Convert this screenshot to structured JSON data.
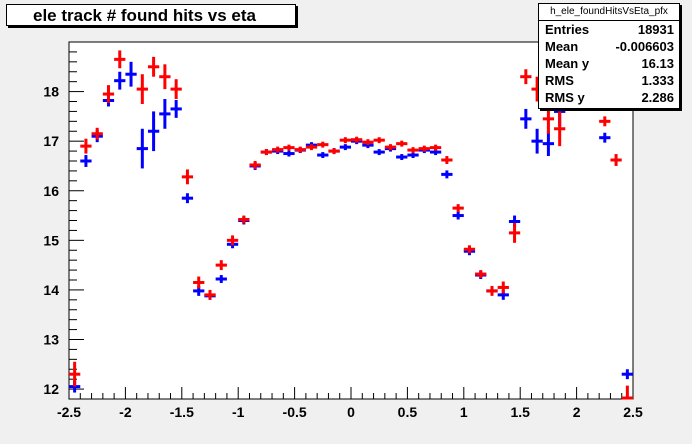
{
  "histogram_name": "h_ele_foundHitsVsEta_pfx",
  "stats": [
    {
      "label": "Entries",
      "value": "18931"
    },
    {
      "label": "Mean",
      "value": "-0.006603"
    },
    {
      "label": "Mean y",
      "value": "16.13"
    },
    {
      "label": "RMS",
      "value": "1.333"
    },
    {
      "label": "RMS y",
      "value": "2.286"
    }
  ],
  "colors": {
    "background": "#f0f0f0",
    "frame": "#ffffff",
    "series_blue": "#0000ff",
    "series_red": "#ff0000"
  },
  "chart_data": {
    "type": "scatter",
    "title": "ele track # found hits vs eta",
    "xlabel": "",
    "ylabel": "",
    "xlim": [
      -2.5,
      2.5
    ],
    "ylim": [
      11.8,
      19.0
    ],
    "x_ticks": [
      "-2.5",
      "-2",
      "-1.5",
      "-1",
      "-0.5",
      "0",
      "0.5",
      "1",
      "1.5",
      "2",
      "2.5"
    ],
    "y_ticks": [
      "12",
      "13",
      "14",
      "15",
      "16",
      "17",
      "18"
    ],
    "grid": false,
    "series": [
      {
        "color": "#0000ff",
        "points": [
          [
            -2.45,
            12.05,
            0.12
          ],
          [
            -2.35,
            16.6,
            0.12
          ],
          [
            -2.25,
            17.1,
            0.12
          ],
          [
            -2.15,
            17.82,
            0.12
          ],
          [
            -2.05,
            18.22,
            0.18
          ],
          [
            -1.95,
            18.35,
            0.25
          ],
          [
            -1.85,
            16.85,
            0.4
          ],
          [
            -1.75,
            17.2,
            0.4
          ],
          [
            -1.65,
            17.55,
            0.3
          ],
          [
            -1.55,
            17.65,
            0.18
          ],
          [
            -1.45,
            15.85,
            0.1
          ],
          [
            -1.35,
            13.98,
            0.1
          ],
          [
            -1.25,
            13.88,
            0.08
          ],
          [
            -1.15,
            14.22,
            0.08
          ],
          [
            -1.05,
            14.92,
            0.08
          ],
          [
            -0.95,
            15.4,
            0.08
          ],
          [
            -0.85,
            16.5,
            0.08
          ],
          [
            -0.75,
            16.78,
            0.06
          ],
          [
            -0.65,
            16.8,
            0.06
          ],
          [
            -0.55,
            16.75,
            0.06
          ],
          [
            -0.45,
            16.82,
            0.06
          ],
          [
            -0.35,
            16.92,
            0.06
          ],
          [
            -0.25,
            16.72,
            0.06
          ],
          [
            -0.15,
            16.8,
            0.06
          ],
          [
            -0.05,
            16.88,
            0.06
          ],
          [
            0.05,
            17.0,
            0.06
          ],
          [
            0.15,
            16.92,
            0.06
          ],
          [
            0.25,
            16.78,
            0.06
          ],
          [
            0.35,
            16.85,
            0.06
          ],
          [
            0.45,
            16.68,
            0.06
          ],
          [
            0.55,
            16.72,
            0.06
          ],
          [
            0.65,
            16.82,
            0.06
          ],
          [
            0.75,
            16.78,
            0.06
          ],
          [
            0.85,
            16.33,
            0.08
          ],
          [
            0.95,
            15.5,
            0.08
          ],
          [
            1.05,
            14.78,
            0.08
          ],
          [
            1.15,
            14.3,
            0.08
          ],
          [
            1.25,
            13.98,
            0.08
          ],
          [
            1.35,
            13.9,
            0.1
          ],
          [
            1.45,
            15.38,
            0.12
          ],
          [
            1.55,
            17.45,
            0.2
          ],
          [
            1.65,
            17.0,
            0.25
          ],
          [
            1.75,
            16.95,
            0.25
          ],
          [
            1.85,
            17.6,
            0.3
          ],
          [
            2.25,
            17.07,
            0.1
          ],
          [
            2.45,
            12.3,
            0.1
          ]
        ]
      },
      {
        "color": "#ff0000",
        "points": [
          [
            -2.45,
            12.3,
            0.25
          ],
          [
            -2.35,
            16.9,
            0.15
          ],
          [
            -2.25,
            17.15,
            0.12
          ],
          [
            -2.15,
            17.95,
            0.18
          ],
          [
            -2.05,
            18.65,
            0.18
          ],
          [
            -1.85,
            18.05,
            0.3
          ],
          [
            -1.75,
            18.5,
            0.2
          ],
          [
            -1.65,
            18.3,
            0.25
          ],
          [
            -1.55,
            18.05,
            0.2
          ],
          [
            -1.45,
            16.28,
            0.15
          ],
          [
            -1.35,
            14.15,
            0.12
          ],
          [
            -1.25,
            13.9,
            0.1
          ],
          [
            -1.15,
            14.5,
            0.1
          ],
          [
            -1.05,
            15.0,
            0.1
          ],
          [
            -0.95,
            15.42,
            0.08
          ],
          [
            -0.85,
            16.52,
            0.08
          ],
          [
            -0.75,
            16.78,
            0.06
          ],
          [
            -0.65,
            16.83,
            0.06
          ],
          [
            -0.55,
            16.87,
            0.06
          ],
          [
            -0.45,
            16.83,
            0.06
          ],
          [
            -0.35,
            16.88,
            0.06
          ],
          [
            -0.25,
            16.93,
            0.06
          ],
          [
            -0.15,
            16.8,
            0.06
          ],
          [
            -0.05,
            17.02,
            0.06
          ],
          [
            0.05,
            17.03,
            0.06
          ],
          [
            0.15,
            16.98,
            0.06
          ],
          [
            0.25,
            17.02,
            0.06
          ],
          [
            0.35,
            16.88,
            0.06
          ],
          [
            0.45,
            16.95,
            0.06
          ],
          [
            0.55,
            16.82,
            0.06
          ],
          [
            0.65,
            16.85,
            0.06
          ],
          [
            0.75,
            16.87,
            0.06
          ],
          [
            0.85,
            16.62,
            0.08
          ],
          [
            0.95,
            15.65,
            0.08
          ],
          [
            1.05,
            14.82,
            0.08
          ],
          [
            1.15,
            14.32,
            0.08
          ],
          [
            1.25,
            13.98,
            0.1
          ],
          [
            1.35,
            14.05,
            0.12
          ],
          [
            1.45,
            15.15,
            0.2
          ],
          [
            1.55,
            18.3,
            0.15
          ],
          [
            1.65,
            18.05,
            0.25
          ],
          [
            1.75,
            17.45,
            0.3
          ],
          [
            1.85,
            17.25,
            0.35
          ],
          [
            2.05,
            18.35,
            0.2
          ],
          [
            2.15,
            18.18,
            0.2
          ],
          [
            2.25,
            17.4,
            0.1
          ],
          [
            2.35,
            16.62,
            0.12
          ],
          [
            2.45,
            11.82,
            0.25
          ]
        ]
      }
    ]
  }
}
